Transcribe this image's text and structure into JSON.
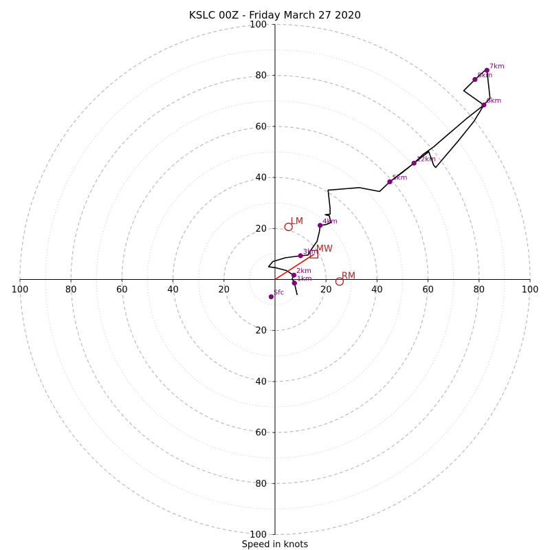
{
  "chart_data": {
    "type": "hodograph",
    "title": "KSLC 00Z - Friday March 27 2020",
    "xlabel": "Speed in knots",
    "units": "knots",
    "range": [
      -100,
      100
    ],
    "ring_major": [
      20,
      40,
      60,
      80,
      100
    ],
    "ring_minor": [
      10,
      30,
      50,
      70,
      90
    ],
    "x_ticks": [
      "100",
      "80",
      "60",
      "40",
      "20",
      "20",
      "40",
      "60",
      "80",
      "100"
    ],
    "y_ticks": [
      "100",
      "80",
      "60",
      "40",
      "20",
      "20",
      "40",
      "60",
      "80",
      "100"
    ],
    "grid": true,
    "colors": {
      "trace": "#000000",
      "height_marker": "#800080",
      "motion": "#b22222",
      "mean_wind_vector": "#ff0000",
      "ring": "#bbbbbb"
    },
    "trace": [
      [
        8.7,
        -6.1
      ],
      [
        7.6,
        -1.4
      ],
      [
        8.5,
        -1.6
      ],
      [
        6.7,
        0.0
      ],
      [
        7.2,
        1.7
      ],
      [
        4.5,
        3.5
      ],
      [
        0.2,
        4.6
      ],
      [
        -2.5,
        5.0
      ],
      [
        -0.9,
        7.0
      ],
      [
        4.0,
        8.5
      ],
      [
        10.0,
        9.3
      ],
      [
        13.0,
        9.6
      ],
      [
        14.0,
        11.4
      ],
      [
        16.5,
        15.0
      ],
      [
        17.4,
        18.8
      ],
      [
        17.7,
        21.2
      ],
      [
        20.0,
        21.5
      ],
      [
        21.9,
        22.3
      ],
      [
        21.3,
        25.0
      ],
      [
        19.7,
        25.4
      ],
      [
        21.6,
        25.6
      ],
      [
        21.6,
        28.0
      ],
      [
        20.8,
        35.0
      ],
      [
        33.0,
        36.0
      ],
      [
        41.0,
        34.5
      ],
      [
        45.0,
        38.3
      ],
      [
        54.5,
        45.6
      ],
      [
        60.3,
        50.1
      ],
      [
        62.2,
        44.8
      ],
      [
        63.0,
        43.9
      ],
      [
        72.0,
        54.5
      ],
      [
        78.0,
        62.0
      ],
      [
        81.9,
        68.4
      ],
      [
        82.2,
        68.8
      ],
      [
        84.3,
        71.0
      ],
      [
        83.1,
        82.0
      ],
      [
        82.7,
        82.3
      ],
      [
        78.4,
        78.4
      ],
      [
        74.0,
        74.0
      ],
      [
        81.9,
        68.4
      ],
      [
        75.0,
        63.0
      ],
      [
        68.0,
        57.0
      ],
      [
        62.2,
        52.0
      ],
      [
        58.0,
        49.0
      ],
      [
        54.5,
        45.6
      ],
      [
        50.0,
        42.0
      ],
      [
        45.0,
        38.3
      ]
    ],
    "height_markers": [
      {
        "label": "Sfc",
        "u": -1.5,
        "v": -6.8
      },
      {
        "label": "1km",
        "u": 7.6,
        "v": -1.4
      },
      {
        "label": "2km",
        "u": 7.4,
        "v": 1.7
      },
      {
        "label": "3km",
        "u": 10.0,
        "v": 9.3
      },
      {
        "label": "4km",
        "u": 17.7,
        "v": 21.2
      },
      {
        "label": "5km",
        "u": 45.0,
        "v": 38.3
      },
      {
        "label": "12km",
        "u": 54.5,
        "v": 45.6
      },
      {
        "label": "6km",
        "u": 81.9,
        "v": 68.4
      },
      {
        "label": "8km",
        "u": 78.4,
        "v": 78.4
      },
      {
        "label": "7km",
        "u": 83.1,
        "v": 82.0
      }
    ],
    "storm_motions": [
      {
        "label": "LM",
        "u": 5.3,
        "v": 20.6,
        "shape": "circle"
      },
      {
        "label": "RM",
        "u": 25.3,
        "v": -0.8,
        "shape": "circle"
      },
      {
        "label": "MW",
        "u": 15.3,
        "v": 9.9,
        "shape": "square"
      }
    ],
    "mean_wind_vector": {
      "from": [
        0,
        0
      ],
      "to": [
        15.3,
        9.9
      ]
    }
  }
}
